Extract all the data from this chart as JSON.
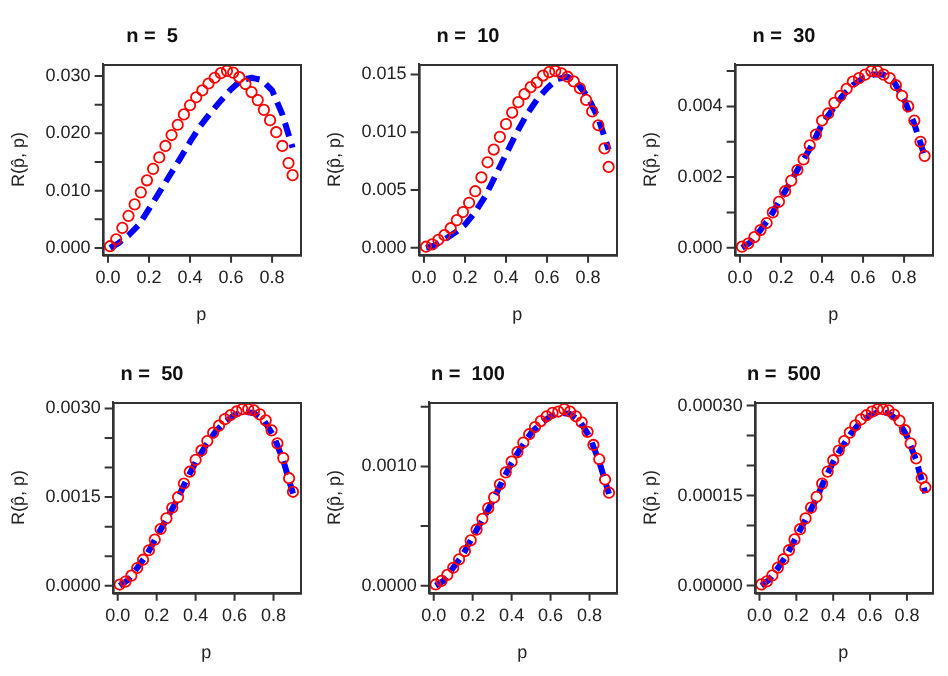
{
  "chart_data": [
    {
      "type": "scatter",
      "title": "n =  5",
      "xlabel": "p",
      "ylabel": "R(p̂, p)",
      "grid": false,
      "legend": false,
      "xlim": [
        -0.026,
        0.936
      ],
      "ylim": [
        -0.0012,
        0.0321
      ],
      "xticks": [
        {
          "value": 0,
          "label": "0.0"
        },
        {
          "value": 0.2,
          "label": "0.2"
        },
        {
          "value": 0.4,
          "label": "0.4"
        },
        {
          "value": 0.6,
          "label": "0.6"
        },
        {
          "value": 0.8,
          "label": "0.8"
        }
      ],
      "yticks": [
        {
          "value": 0,
          "label": "0.000"
        },
        {
          "value": 0.005,
          "label": null
        },
        {
          "value": 0.01,
          "label": "0.010"
        },
        {
          "value": 0.015,
          "label": null
        },
        {
          "value": 0.02,
          "label": "0.020"
        },
        {
          "value": 0.025,
          "label": null
        },
        {
          "value": 0.03,
          "label": "0.030"
        }
      ],
      "series": [
        {
          "type": "scatter",
          "marker": "circle",
          "color": "#ff0000",
          "x": [
            0.01,
            0.04,
            0.07,
            0.1,
            0.13,
            0.16,
            0.19,
            0.22,
            0.25,
            0.28,
            0.31,
            0.34,
            0.37,
            0.4,
            0.43,
            0.46,
            0.49,
            0.52,
            0.55,
            0.58,
            0.61,
            0.64,
            0.67,
            0.7,
            0.73,
            0.76,
            0.79,
            0.82,
            0.85,
            0.88,
            0.9
          ],
          "values": [
            0.0003,
            0.0015,
            0.0035,
            0.0056,
            0.0076,
            0.0097,
            0.0118,
            0.0138,
            0.0158,
            0.0178,
            0.0197,
            0.0215,
            0.0233,
            0.0249,
            0.0263,
            0.0275,
            0.0287,
            0.0297,
            0.0305,
            0.0309,
            0.0306,
            0.0298,
            0.0286,
            0.0272,
            0.0258,
            0.0241,
            0.0223,
            0.0202,
            0.0178,
            0.0148,
            0.0127
          ]
        },
        {
          "type": "line",
          "line_style": "dashed",
          "color": "#0000ff",
          "x": [
            0.01,
            0.05,
            0.1,
            0.15,
            0.2,
            0.25,
            0.3,
            0.35,
            0.4,
            0.45,
            0.5,
            0.55,
            0.6,
            0.65,
            0.7,
            0.75,
            0.8,
            0.85,
            0.9
          ],
          "values": [
            0,
            0.0008,
            0.0022,
            0.004,
            0.0068,
            0.0097,
            0.0126,
            0.0155,
            0.0185,
            0.0213,
            0.0236,
            0.0257,
            0.0277,
            0.0293,
            0.0297,
            0.0293,
            0.0275,
            0.0233,
            0.0175
          ]
        }
      ]
    },
    {
      "type": "scatter",
      "title": "n =  10",
      "xlabel": "p",
      "ylabel": "R(p̂, p)",
      "grid": false,
      "legend": false,
      "xlim": [
        -0.026,
        0.936
      ],
      "ylim": [
        -0.0006,
        0.0159
      ],
      "xticks": [
        {
          "value": 0,
          "label": "0.0"
        },
        {
          "value": 0.2,
          "label": "0.2"
        },
        {
          "value": 0.4,
          "label": "0.4"
        },
        {
          "value": 0.6,
          "label": "0.6"
        },
        {
          "value": 0.8,
          "label": "0.8"
        }
      ],
      "yticks": [
        {
          "value": 0,
          "label": "0.000"
        },
        {
          "value": 0.005,
          "label": "0.005"
        },
        {
          "value": 0.01,
          "label": "0.010"
        },
        {
          "value": 0.015,
          "label": "0.015"
        }
      ],
      "series": [
        {
          "type": "scatter",
          "marker": "circle",
          "color": "#ff0000",
          "x": [
            0.01,
            0.04,
            0.07,
            0.1,
            0.13,
            0.16,
            0.19,
            0.22,
            0.25,
            0.28,
            0.31,
            0.34,
            0.37,
            0.4,
            0.43,
            0.46,
            0.49,
            0.52,
            0.55,
            0.58,
            0.61,
            0.64,
            0.67,
            0.7,
            0.73,
            0.76,
            0.79,
            0.82,
            0.85,
            0.88,
            0.9
          ],
          "values": [
            0.0001,
            0.0003,
            0.0007,
            0.0011,
            0.0017,
            0.0024,
            0.0031,
            0.0039,
            0.0049,
            0.0061,
            0.0074,
            0.0085,
            0.0096,
            0.0107,
            0.0117,
            0.0126,
            0.0133,
            0.0139,
            0.0143,
            0.0149,
            0.0152,
            0.0153,
            0.0151,
            0.0148,
            0.0144,
            0.0138,
            0.0128,
            0.0118,
            0.0106,
            0.0086,
            0.007
          ]
        },
        {
          "type": "line",
          "line_style": "dashed",
          "color": "#0000ff",
          "x": [
            0.01,
            0.05,
            0.1,
            0.15,
            0.2,
            0.25,
            0.3,
            0.35,
            0.4,
            0.45,
            0.5,
            0.55,
            0.6,
            0.65,
            0.7,
            0.75,
            0.8,
            0.85,
            0.9
          ],
          "values": [
            0,
            0.0002,
            0.0007,
            0.0013,
            0.002,
            0.0031,
            0.0045,
            0.0063,
            0.0081,
            0.0099,
            0.0115,
            0.0128,
            0.0138,
            0.0146,
            0.0148,
            0.0142,
            0.013,
            0.0112,
            0.0085
          ]
        }
      ]
    },
    {
      "type": "scatter",
      "title": "n =  30",
      "xlabel": "p",
      "ylabel": "R(p̂, p)",
      "grid": false,
      "legend": false,
      "xlim": [
        -0.026,
        0.936
      ],
      "ylim": [
        -0.0002,
        0.0052
      ],
      "xticks": [
        {
          "value": 0,
          "label": "0.0"
        },
        {
          "value": 0.2,
          "label": "0.2"
        },
        {
          "value": 0.4,
          "label": "0.4"
        },
        {
          "value": 0.6,
          "label": "0.6"
        },
        {
          "value": 0.8,
          "label": "0.8"
        }
      ],
      "yticks": [
        {
          "value": 0,
          "label": "0.000"
        },
        {
          "value": 0.001,
          "label": null
        },
        {
          "value": 0.002,
          "label": "0.002"
        },
        {
          "value": 0.003,
          "label": null
        },
        {
          "value": 0.004,
          "label": "0.004"
        },
        {
          "value": 0.005,
          "label": null
        }
      ],
      "series": [
        {
          "type": "scatter",
          "marker": "circle",
          "color": "#ff0000",
          "x": [
            0.01,
            0.04,
            0.07,
            0.1,
            0.13,
            0.16,
            0.19,
            0.22,
            0.25,
            0.28,
            0.31,
            0.34,
            0.37,
            0.4,
            0.43,
            0.46,
            0.49,
            0.52,
            0.55,
            0.58,
            0.61,
            0.64,
            0.67,
            0.7,
            0.73,
            0.76,
            0.79,
            0.82,
            0.85,
            0.88,
            0.9
          ],
          "values": [
            3e-05,
            0.00012,
            0.0003,
            0.0005,
            0.0007,
            0.001,
            0.0013,
            0.0016,
            0.0019,
            0.0022,
            0.0025,
            0.0029,
            0.0032,
            0.0036,
            0.0038,
            0.0041,
            0.0043,
            0.0045,
            0.0047,
            0.0048,
            0.0049,
            0.005,
            0.005,
            0.0049,
            0.0048,
            0.0046,
            0.0043,
            0.004,
            0.0036,
            0.003,
            0.0026
          ]
        },
        {
          "type": "line",
          "line_style": "dashed",
          "color": "#0000ff",
          "x": [
            0.01,
            0.05,
            0.1,
            0.15,
            0.2,
            0.25,
            0.3,
            0.35,
            0.4,
            0.45,
            0.5,
            0.55,
            0.6,
            0.65,
            0.7,
            0.75,
            0.8,
            0.85,
            0.9
          ],
          "values": [
            0,
            0.00015,
            0.0005,
            0.0009,
            0.0014,
            0.0019,
            0.0024,
            0.0029,
            0.0035,
            0.0039,
            0.0043,
            0.0046,
            0.0048,
            0.0049,
            0.0049,
            0.0047,
            0.0042,
            0.0035,
            0.0026
          ]
        }
      ]
    },
    {
      "type": "scatter",
      "title": "n =  50",
      "xlabel": "p",
      "ylabel": "R(p̂, p)",
      "grid": false,
      "legend": false,
      "xlim": [
        -0.026,
        0.936
      ],
      "ylim": [
        -0.00012,
        0.00311
      ],
      "xticks": [
        {
          "value": 0,
          "label": "0.0"
        },
        {
          "value": 0.2,
          "label": "0.2"
        },
        {
          "value": 0.4,
          "label": "0.4"
        },
        {
          "value": 0.6,
          "label": "0.6"
        },
        {
          "value": 0.8,
          "label": "0.8"
        }
      ],
      "yticks": [
        {
          "value": 0,
          "label": "0.0000"
        },
        {
          "value": 0.0005,
          "label": null
        },
        {
          "value": 0.001,
          "label": null
        },
        {
          "value": 0.0015,
          "label": "0.0015"
        },
        {
          "value": 0.002,
          "label": null
        },
        {
          "value": 0.0025,
          "label": null
        },
        {
          "value": 0.003,
          "label": "0.0030"
        }
      ],
      "series": [
        {
          "type": "scatter",
          "marker": "circle",
          "color": "#ff0000",
          "x": [
            0.01,
            0.04,
            0.07,
            0.1,
            0.13,
            0.16,
            0.19,
            0.22,
            0.25,
            0.28,
            0.31,
            0.34,
            0.37,
            0.4,
            0.43,
            0.46,
            0.49,
            0.52,
            0.55,
            0.58,
            0.61,
            0.64,
            0.67,
            0.7,
            0.73,
            0.76,
            0.79,
            0.82,
            0.85,
            0.88,
            0.9
          ],
          "values": [
            2e-05,
            7e-05,
            0.00017,
            0.0003,
            0.00044,
            0.0006,
            0.00078,
            0.00096,
            0.00114,
            0.00132,
            0.0015,
            0.00173,
            0.00193,
            0.00213,
            0.00229,
            0.00245,
            0.00259,
            0.00271,
            0.00282,
            0.00289,
            0.00295,
            0.00299,
            0.00299,
            0.00297,
            0.0029,
            0.0028,
            0.00263,
            0.00241,
            0.00216,
            0.00182,
            0.00159
          ]
        },
        {
          "type": "line",
          "line_style": "dashed",
          "color": "#0000ff",
          "x": [
            0.01,
            0.05,
            0.1,
            0.15,
            0.2,
            0.25,
            0.3,
            0.35,
            0.4,
            0.45,
            0.5,
            0.55,
            0.6,
            0.65,
            0.7,
            0.75,
            0.8,
            0.85,
            0.9
          ],
          "values": [
            0,
            9e-05,
            0.0003,
            0.00053,
            0.00083,
            0.00112,
            0.00142,
            0.00177,
            0.00209,
            0.00236,
            0.0026,
            0.00277,
            0.00289,
            0.00295,
            0.00292,
            0.0028,
            0.00254,
            0.00212,
            0.00156
          ]
        }
      ]
    },
    {
      "type": "scatter",
      "title": "n =  100",
      "xlabel": "p",
      "ylabel": "R(p̂, p)",
      "grid": false,
      "legend": false,
      "xlim": [
        -0.026,
        0.936
      ],
      "ylim": [
        -6e-05,
        0.00154
      ],
      "xticks": [
        {
          "value": 0,
          "label": "0.0"
        },
        {
          "value": 0.2,
          "label": "0.2"
        },
        {
          "value": 0.4,
          "label": "0.4"
        },
        {
          "value": 0.6,
          "label": "0.6"
        },
        {
          "value": 0.8,
          "label": "0.8"
        }
      ],
      "yticks": [
        {
          "value": 0,
          "label": "0.0000"
        },
        {
          "value": 0.0005,
          "label": null
        },
        {
          "value": 0.001,
          "label": "0.0010"
        },
        {
          "value": 0.0015,
          "label": null
        }
      ],
      "series": [
        {
          "type": "scatter",
          "marker": "circle",
          "color": "#ff0000",
          "x": [
            0.01,
            0.04,
            0.07,
            0.1,
            0.13,
            0.16,
            0.19,
            0.22,
            0.25,
            0.28,
            0.31,
            0.34,
            0.37,
            0.4,
            0.43,
            0.46,
            0.49,
            0.52,
            0.55,
            0.58,
            0.61,
            0.64,
            0.67,
            0.7,
            0.73,
            0.76,
            0.79,
            0.82,
            0.85,
            0.88,
            0.9
          ],
          "values": [
            1e-05,
            4e-05,
            9e-05,
            0.00015,
            0.00022,
            0.00029,
            0.00038,
            0.00047,
            0.00056,
            0.00065,
            0.00074,
            0.00085,
            0.00095,
            0.00104,
            0.00112,
            0.0012,
            0.00127,
            0.00133,
            0.00138,
            0.00142,
            0.00145,
            0.00146,
            0.00148,
            0.00146,
            0.00142,
            0.00137,
            0.00129,
            0.00118,
            0.00106,
            0.00089,
            0.00078
          ]
        },
        {
          "type": "line",
          "line_style": "dashed",
          "color": "#0000ff",
          "x": [
            0.01,
            0.05,
            0.1,
            0.15,
            0.2,
            0.25,
            0.3,
            0.35,
            0.4,
            0.45,
            0.5,
            0.55,
            0.6,
            0.65,
            0.7,
            0.75,
            0.8,
            0.85,
            0.9
          ],
          "values": [
            0,
            4e-05,
            0.00015,
            0.00026,
            0.00041,
            0.00055,
            0.0007,
            0.00087,
            0.00103,
            0.00116,
            0.00128,
            0.00136,
            0.00142,
            0.00145,
            0.00144,
            0.00138,
            0.00125,
            0.00104,
            0.00077
          ]
        }
      ]
    },
    {
      "type": "scatter",
      "title": "n =  500",
      "xlabel": "p",
      "ylabel": "R(p̂, p)",
      "grid": false,
      "legend": false,
      "xlim": [
        -0.026,
        0.936
      ],
      "ylim": [
        -1.2e-05,
        0.000306
      ],
      "xticks": [
        {
          "value": 0,
          "label": "0.0"
        },
        {
          "value": 0.2,
          "label": "0.2"
        },
        {
          "value": 0.4,
          "label": "0.4"
        },
        {
          "value": 0.6,
          "label": "0.6"
        },
        {
          "value": 0.8,
          "label": "0.8"
        }
      ],
      "yticks": [
        {
          "value": 0,
          "label": "0.00000"
        },
        {
          "value": 5e-05,
          "label": null
        },
        {
          "value": 0.0001,
          "label": null
        },
        {
          "value": 0.00015,
          "label": "0.00015"
        },
        {
          "value": 0.0002,
          "label": null
        },
        {
          "value": 0.00025,
          "label": null
        },
        {
          "value": 0.0003,
          "label": "0.00030"
        }
      ],
      "series": [
        {
          "type": "scatter",
          "marker": "circle",
          "color": "#ff0000",
          "x": [
            0.01,
            0.04,
            0.07,
            0.1,
            0.13,
            0.16,
            0.19,
            0.22,
            0.25,
            0.28,
            0.31,
            0.34,
            0.37,
            0.4,
            0.43,
            0.46,
            0.49,
            0.52,
            0.55,
            0.58,
            0.61,
            0.64,
            0.67,
            0.7,
            0.73,
            0.76,
            0.79,
            0.82,
            0.85,
            0.88,
            0.9
          ],
          "values": [
            2e-06,
            7e-06,
            1.7e-05,
            3e-05,
            4.4e-05,
            5.9e-05,
            7.7e-05,
            9.4e-05,
            0.000112,
            0.00013,
            0.000148,
            0.00017,
            0.00019,
            0.000209,
            0.000225,
            0.000241,
            0.000255,
            0.000267,
            0.000277,
            0.000284,
            0.00029,
            0.000294,
            0.000294,
            0.000292,
            0.000285,
            0.000275,
            0.000259,
            0.000237,
            0.000212,
            0.000179,
            0.000164
          ]
        },
        {
          "type": "line",
          "line_style": "dashed",
          "color": "#0000ff",
          "x": [
            0.01,
            0.05,
            0.1,
            0.15,
            0.2,
            0.25,
            0.3,
            0.35,
            0.4,
            0.45,
            0.5,
            0.55,
            0.6,
            0.65,
            0.7,
            0.75,
            0.8,
            0.85,
            0.9
          ],
          "values": [
            0,
            9e-06,
            2.9e-05,
            5.2e-05,
            8.1e-05,
            0.00011,
            0.000139,
            0.000174,
            0.000206,
            0.000232,
            0.000255,
            0.000273,
            0.000284,
            0.00029,
            0.000287,
            0.000276,
            0.000249,
            0.000209,
            0.000154
          ]
        }
      ]
    }
  ]
}
